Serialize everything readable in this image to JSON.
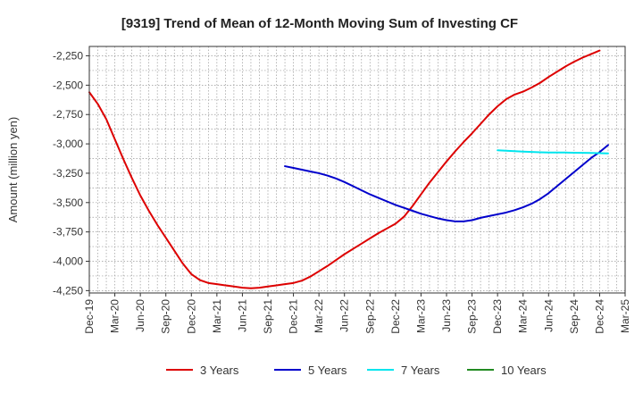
{
  "chart_data": {
    "type": "line",
    "title": "[9319]  Trend of Mean of 12-Month Moving Sum of Investing CF",
    "ylabel": "Amount (million yen)",
    "xlabel": "",
    "x_range": [
      "2019-12",
      "2025-03"
    ],
    "ylim": [
      -4270,
      -2170
    ],
    "y_ticks": [
      -2250,
      -2500,
      -2750,
      -3000,
      -3250,
      -3500,
      -3750,
      -4000,
      -4250
    ],
    "y_tick_labels": [
      "-2,250",
      "-2,500",
      "-2,750",
      "-3,000",
      "-3,250",
      "-3,500",
      "-3,750",
      "-4,000",
      "-4,250"
    ],
    "x_ticks": [
      "2019-12",
      "2020-03",
      "2020-06",
      "2020-09",
      "2020-12",
      "2021-03",
      "2021-06",
      "2021-09",
      "2021-12",
      "2022-03",
      "2022-06",
      "2022-09",
      "2022-12",
      "2023-03",
      "2023-06",
      "2023-09",
      "2023-12",
      "2024-03",
      "2024-06",
      "2024-09",
      "2024-12",
      "2025-03"
    ],
    "x_tick_labels": [
      "Dec-19",
      "Mar-20",
      "Jun-20",
      "Sep-20",
      "Dec-20",
      "Mar-21",
      "Jun-21",
      "Sep-21",
      "Dec-21",
      "Mar-22",
      "Jun-22",
      "Sep-22",
      "Dec-22",
      "Mar-23",
      "Jun-23",
      "Sep-23",
      "Dec-23",
      "Mar-24",
      "Jun-24",
      "Sep-24",
      "Dec-24",
      "Mar-25"
    ],
    "grid": true,
    "legend_position": "bottom",
    "series": [
      {
        "name": "3 Years",
        "color": "#dd0000",
        "points": [
          [
            "2019-12",
            -2560
          ],
          [
            "2020-01",
            -2660
          ],
          [
            "2020-02",
            -2790
          ],
          [
            "2020-03",
            -2960
          ],
          [
            "2020-04",
            -3130
          ],
          [
            "2020-05",
            -3290
          ],
          [
            "2020-06",
            -3440
          ],
          [
            "2020-07",
            -3570
          ],
          [
            "2020-08",
            -3690
          ],
          [
            "2020-09",
            -3800
          ],
          [
            "2020-10",
            -3910
          ],
          [
            "2020-11",
            -4020
          ],
          [
            "2020-12",
            -4110
          ],
          [
            "2021-01",
            -4160
          ],
          [
            "2021-02",
            -4185
          ],
          [
            "2021-03",
            -4195
          ],
          [
            "2021-04",
            -4205
          ],
          [
            "2021-05",
            -4215
          ],
          [
            "2021-06",
            -4225
          ],
          [
            "2021-07",
            -4230
          ],
          [
            "2021-08",
            -4225
          ],
          [
            "2021-09",
            -4215
          ],
          [
            "2021-10",
            -4205
          ],
          [
            "2021-11",
            -4195
          ],
          [
            "2021-12",
            -4185
          ],
          [
            "2022-01",
            -4165
          ],
          [
            "2022-02",
            -4130
          ],
          [
            "2022-03",
            -4085
          ],
          [
            "2022-04",
            -4040
          ],
          [
            "2022-05",
            -3990
          ],
          [
            "2022-06",
            -3940
          ],
          [
            "2022-07",
            -3895
          ],
          [
            "2022-08",
            -3850
          ],
          [
            "2022-09",
            -3805
          ],
          [
            "2022-10",
            -3760
          ],
          [
            "2022-11",
            -3720
          ],
          [
            "2022-12",
            -3680
          ],
          [
            "2023-01",
            -3620
          ],
          [
            "2023-02",
            -3530
          ],
          [
            "2023-03",
            -3430
          ],
          [
            "2023-04",
            -3330
          ],
          [
            "2023-05",
            -3240
          ],
          [
            "2023-06",
            -3150
          ],
          [
            "2023-07",
            -3065
          ],
          [
            "2023-08",
            -2985
          ],
          [
            "2023-09",
            -2910
          ],
          [
            "2023-10",
            -2830
          ],
          [
            "2023-11",
            -2750
          ],
          [
            "2023-12",
            -2680
          ],
          [
            "2024-01",
            -2620
          ],
          [
            "2024-02",
            -2580
          ],
          [
            "2024-03",
            -2555
          ],
          [
            "2024-04",
            -2520
          ],
          [
            "2024-05",
            -2480
          ],
          [
            "2024-06",
            -2430
          ],
          [
            "2024-07",
            -2385
          ],
          [
            "2024-08",
            -2340
          ],
          [
            "2024-09",
            -2300
          ],
          [
            "2024-10",
            -2265
          ],
          [
            "2024-11",
            -2235
          ],
          [
            "2024-12",
            -2205
          ]
        ]
      },
      {
        "name": "5 Years",
        "color": "#0000cc",
        "points": [
          [
            "2021-11",
            -3190
          ],
          [
            "2021-12",
            -3205
          ],
          [
            "2022-01",
            -3220
          ],
          [
            "2022-02",
            -3235
          ],
          [
            "2022-03",
            -3250
          ],
          [
            "2022-04",
            -3270
          ],
          [
            "2022-05",
            -3295
          ],
          [
            "2022-06",
            -3325
          ],
          [
            "2022-07",
            -3360
          ],
          [
            "2022-08",
            -3395
          ],
          [
            "2022-09",
            -3430
          ],
          [
            "2022-10",
            -3460
          ],
          [
            "2022-11",
            -3490
          ],
          [
            "2022-12",
            -3520
          ],
          [
            "2023-01",
            -3545
          ],
          [
            "2023-02",
            -3570
          ],
          [
            "2023-03",
            -3595
          ],
          [
            "2023-04",
            -3615
          ],
          [
            "2023-05",
            -3635
          ],
          [
            "2023-06",
            -3650
          ],
          [
            "2023-07",
            -3660
          ],
          [
            "2023-08",
            -3660
          ],
          [
            "2023-09",
            -3650
          ],
          [
            "2023-10",
            -3630
          ],
          [
            "2023-11",
            -3615
          ],
          [
            "2023-12",
            -3600
          ],
          [
            "2024-01",
            -3585
          ],
          [
            "2024-02",
            -3565
          ],
          [
            "2024-03",
            -3540
          ],
          [
            "2024-04",
            -3510
          ],
          [
            "2024-05",
            -3470
          ],
          [
            "2024-06",
            -3420
          ],
          [
            "2024-07",
            -3360
          ],
          [
            "2024-08",
            -3300
          ],
          [
            "2024-09",
            -3240
          ],
          [
            "2024-10",
            -3180
          ],
          [
            "2024-11",
            -3120
          ],
          [
            "2024-12",
            -3070
          ],
          [
            "2025-01",
            -3010
          ]
        ]
      },
      {
        "name": "7 Years",
        "color": "#00e5ee",
        "points": [
          [
            "2023-12",
            -3055
          ],
          [
            "2024-01",
            -3058
          ],
          [
            "2024-02",
            -3062
          ],
          [
            "2024-03",
            -3066
          ],
          [
            "2024-04",
            -3069
          ],
          [
            "2024-05",
            -3072
          ],
          [
            "2024-06",
            -3074
          ],
          [
            "2024-07",
            -3074
          ],
          [
            "2024-08",
            -3074
          ],
          [
            "2024-09",
            -3075
          ],
          [
            "2024-10",
            -3076
          ],
          [
            "2024-11",
            -3077
          ],
          [
            "2024-12",
            -3079
          ],
          [
            "2025-01",
            -3081
          ]
        ]
      },
      {
        "name": "10 Years",
        "color": "#228b22",
        "points": []
      }
    ]
  }
}
